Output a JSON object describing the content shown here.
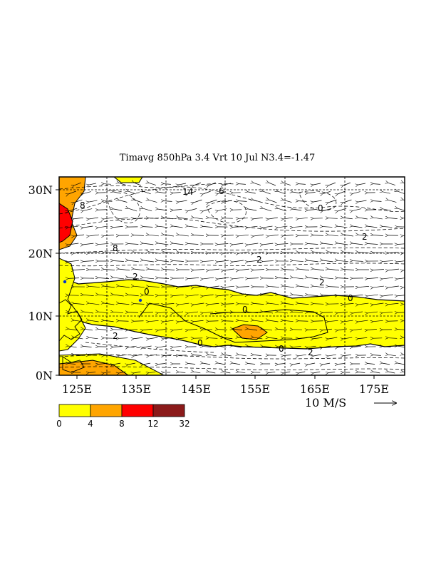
{
  "title": "Timavg 850hPa 3.4 Vrt 10 Jul N3.4=-1.47",
  "map": {
    "lon_range": [
      120,
      178
    ],
    "lat_range": [
      0,
      32
    ],
    "lon_ticks": [
      "125E",
      "135E",
      "145E",
      "155E",
      "165E",
      "175E"
    ],
    "lat_ticks": [
      "0N",
      "10N",
      "20N",
      "30N"
    ],
    "gridlines": true
  },
  "colorbar": {
    "labels": [
      "0",
      "4",
      "8",
      "12",
      "32"
    ],
    "colors": [
      "#ffff00",
      "#ffa500",
      "#ff0000",
      "#8b1a1a"
    ]
  },
  "vector_reference": {
    "label": "10 M/S"
  },
  "contour_labels": [
    "14",
    "6",
    "8",
    "8",
    "2",
    "2",
    "2",
    "0",
    "0",
    "0",
    "2",
    "0",
    "0",
    "2",
    "2",
    "0"
  ],
  "colors": {
    "positive_band": "#ffff00",
    "moderate": "#ffa500",
    "strong": "#ff0000"
  }
}
